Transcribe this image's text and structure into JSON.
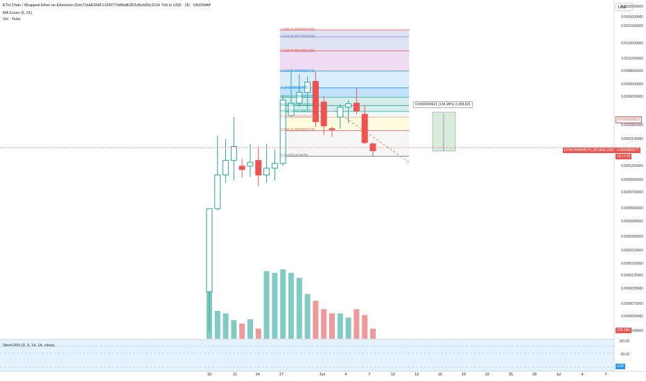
{
  "header": {
    "title": "ETH Chan / Wrapped Ether on Ethereum (0xb71b4E954F132f3770d9bdE0D1d5eb50c3214 7ef) in USD · 1D · UNISWAP",
    "indicator_ma": "MA Cross (9, 21)",
    "indicator_vol": "Vol · Ticks"
  },
  "price_axis": {
    "currency_button": "USD",
    "labels": [
      "0.0032000000",
      "0.0026000000",
      "0.0021500000",
      "0.0015000000",
      "0.0011000000",
      "0.0008500000",
      "0.0006500000",
      "0.0005000000",
      "0.0002800000",
      "0.0002100000",
      "0.0001200000",
      "0.0000900000",
      "0.0000700000",
      "0.0000500000",
      "0.0000380000",
      "0.0000280000",
      "0.0000210000",
      "0.0000160000",
      "0.0000125000",
      "0.0000095000",
      "0.0000070000",
      "0.0000054000",
      "0.0000040000"
    ],
    "ma_tag": "0.0003609972",
    "last_price_symbol": "ETHCHANWETH_B218AE.USD",
    "last_price_value": "0.0001863177",
    "countdown": "10:17:34",
    "volume_tag": "279.19K"
  },
  "fib": {
    "levels": [
      "4.236 (0.0019947020)",
      "3.618 (0.0017292039)",
      "2.618 (0.0012891229)",
      "1.618 (0.0008536478)",
      "1 (0.0006035458)",
      "0.786 (0.0004980225)",
      "0.618 (0.0004189609)",
      "0.5 (0.0003709822)",
      "0.382 (0.0003294672)",
      "0.236 (0.0002503779)",
      "0 (0.0001474628)"
    ]
  },
  "measure": {
    "label": "0.0002309621 (134.18%) 2,309,621"
  },
  "stoch": {
    "title": "Stoch RSI (3, 3, 14, 14, close)",
    "axis_labels": [
      "100.00",
      "50.00"
    ],
    "value_tag": "0.00"
  },
  "time_axis": {
    "labels": [
      "18",
      "21",
      "24",
      "27",
      "Jun",
      "4",
      "7",
      "10",
      "13",
      "16",
      "19",
      "22",
      "25",
      "28",
      "Jul",
      "4",
      "7"
    ]
  },
  "colors": {
    "up": "#26a69a",
    "down": "#ef5350",
    "vol_up": "#80cbc4",
    "vol_down": "#ef9a9a"
  },
  "chart_data": {
    "type": "candlestick",
    "candles": [
      {
        "o": 9e-06,
        "h": 5e-05,
        "l": 4e-06,
        "c": 5e-05
      },
      {
        "o": 5e-05,
        "h": 0.000225,
        "l": 4.8e-05,
        "c": 0.0001
      },
      {
        "o": 0.0001,
        "h": 0.00021,
        "l": 8.5e-05,
        "c": 0.000135
      },
      {
        "o": 0.000135,
        "h": 0.00033,
        "l": 9e-05,
        "c": 0.00018
      },
      {
        "o": 0.00012,
        "h": 0.00014,
        "l": 9.5e-05,
        "c": 0.000112
      },
      {
        "o": 0.00012,
        "h": 0.00019,
        "l": 9.6e-05,
        "c": 0.00013
      },
      {
        "o": 0.000135,
        "h": 0.00018,
        "l": 8e-05,
        "c": 0.0001
      },
      {
        "o": 0.0001,
        "h": 0.00019,
        "l": 8.5e-05,
        "c": 0.000115
      },
      {
        "o": 0.000115,
        "h": 0.00017,
        "l": 9e-05,
        "c": 0.000127
      },
      {
        "o": 0.000127,
        "h": 0.00052,
        "l": 0.00012,
        "c": 0.00047
      },
      {
        "o": 0.00034,
        "h": 0.00088,
        "l": 0.00033,
        "c": 0.00044
      },
      {
        "o": 0.00044,
        "h": 0.0008,
        "l": 0.00041,
        "c": 0.00055
      },
      {
        "o": 0.00055,
        "h": 0.00076,
        "l": 0.00038,
        "c": 0.00068
      },
      {
        "o": 0.00069,
        "h": 0.00084,
        "l": 0.00027,
        "c": 0.0003
      },
      {
        "o": 0.00045,
        "h": 0.00051,
        "l": 0.00023,
        "c": 0.000275
      },
      {
        "o": 0.00026,
        "h": 0.00027,
        "l": 0.00022,
        "c": 0.000255
      },
      {
        "o": 0.00033,
        "h": 0.00043,
        "l": 0.00026,
        "c": 0.000405
      },
      {
        "o": 0.000405,
        "h": 0.00047,
        "l": 0.00029,
        "c": 0.000435
      },
      {
        "o": 0.00044,
        "h": 0.0006,
        "l": 0.00035,
        "c": 0.000375
      },
      {
        "o": 0.00035,
        "h": 0.00042,
        "l": 0.00019,
        "c": 0.000195
      },
      {
        "o": 0.00019,
        "h": 0.000195,
        "l": 0.000148,
        "c": 0.000165
      }
    ],
    "volume": [
      1,
      0.33,
      0.3,
      0.22,
      0.18,
      0.23,
      0.12,
      0.8,
      0.78,
      0.82,
      0.78,
      0.72,
      0.53,
      0.45,
      0.35,
      0.3,
      0.3,
      0.25,
      0.35,
      0.28,
      0.12
    ],
    "ylabel": "USD",
    "log_scale": true
  }
}
